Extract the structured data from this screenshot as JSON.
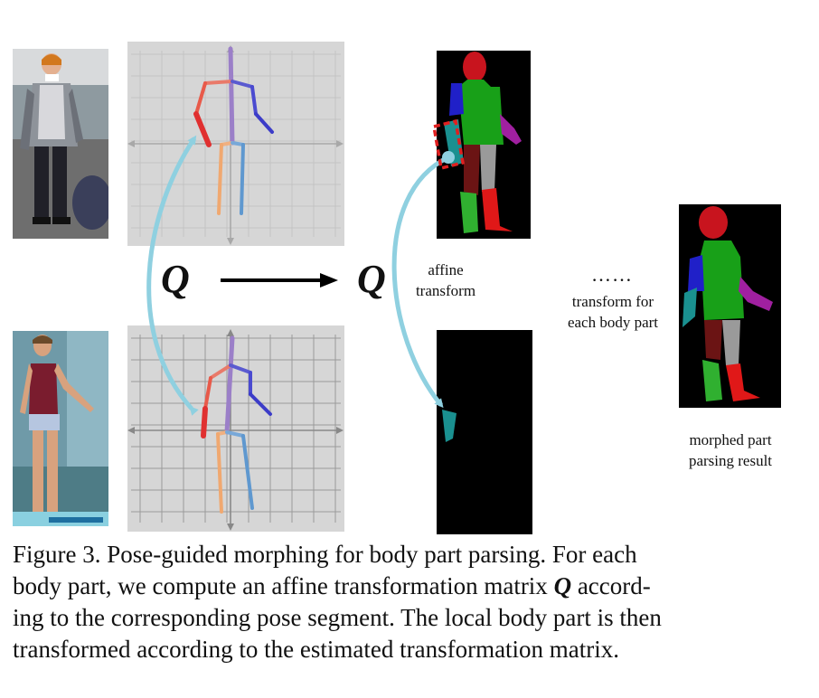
{
  "labels": {
    "q_left": "Q",
    "q_right": "Q",
    "affine_line1": "affine",
    "affine_line2": "transform",
    "dots": "……",
    "each_line1": "transform for",
    "each_line2": "each body part",
    "result_line1": "morphed part",
    "result_line2": "parsing result"
  },
  "caption": {
    "line1": "Figure 3. Pose-guided morphing for body part parsing.  For each",
    "line2_before": "body part, we compute an affine transformation matrix ",
    "line2_symbol": "Q",
    "line2_after": " accord-",
    "line3": "ing to the corresponding pose segment. The local body part is then",
    "line4": "transformed according to the estimated transformation matrix."
  },
  "colors": {
    "arrow_cyan": "#8fd0e0",
    "grid_bg": "#d6d6d6",
    "head": "#c8141e",
    "torso": "#18a018",
    "upper_arm": "#2020c8",
    "cyan_part": "#1a9090",
    "dark_red": "#6b1414",
    "gray": "#9a9a9a",
    "purple": "#a020a0",
    "leg_green": "#30b030",
    "leg_red": "#e01818",
    "dashed_box": "#e02020"
  }
}
